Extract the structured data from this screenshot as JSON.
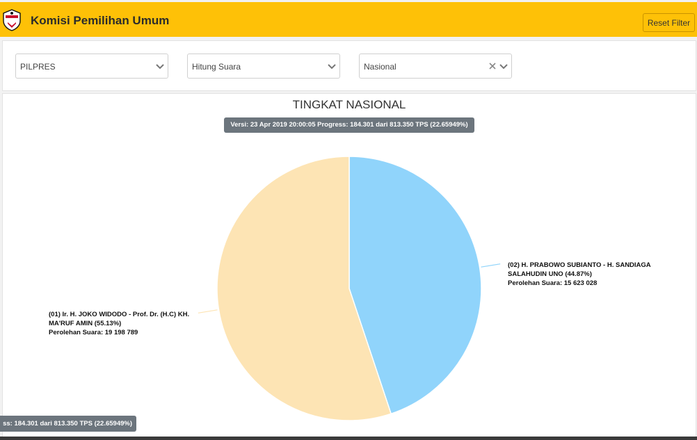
{
  "app": {
    "title": "Komisi Pemilihan Umum",
    "reset_label": "Reset Filter",
    "logo_icon": "kpu-logo-icon"
  },
  "filters": {
    "election": {
      "value": "PILPRES"
    },
    "mode": {
      "value": "Hitung Suara"
    },
    "region": {
      "value": "Nasional",
      "clearable": true
    }
  },
  "chart": {
    "heading": "TINGKAT NASIONAL",
    "version_text": "Versi: 23 Apr 2019 20:00:05 Progress: 184.301 dari 813.350 TPS (22.65949%)",
    "footer_badge_text": "ss: 184.301 dari 813.350 TPS (22.65949%)",
    "label_02_line1": "(02) H. PRABOWO SUBIANTO - H. SANDIAGA SALAHUDIN UNO (44.87%)",
    "label_02_line2": "Perolehan Suara: 15 623 028",
    "label_01_line1": "(01) Ir. H. JOKO WIDODO - Prof. Dr. (H.C) KH. MA'RUF AMIN (55.13%)",
    "label_01_line2": "Perolehan Suara: 19 198 789"
  },
  "chart_data": {
    "type": "pie",
    "title": "TINGKAT NASIONAL",
    "series": [
      {
        "name": "(02) H. PRABOWO SUBIANTO - H. SANDIAGA SALAHUDIN UNO",
        "percent": 44.87,
        "votes": 15623028,
        "color": "#90d4fb"
      },
      {
        "name": "(01) Ir. H. JOKO WIDODO - Prof. Dr. (H.C) KH. MA'RUF AMIN",
        "percent": 55.13,
        "votes": 19198789,
        "color": "#fde4b4"
      }
    ]
  },
  "colors": {
    "header": "#fec107",
    "slice_02": "#90d4fb",
    "slice_01": "#fde4b4",
    "badge": "#6c757d"
  }
}
